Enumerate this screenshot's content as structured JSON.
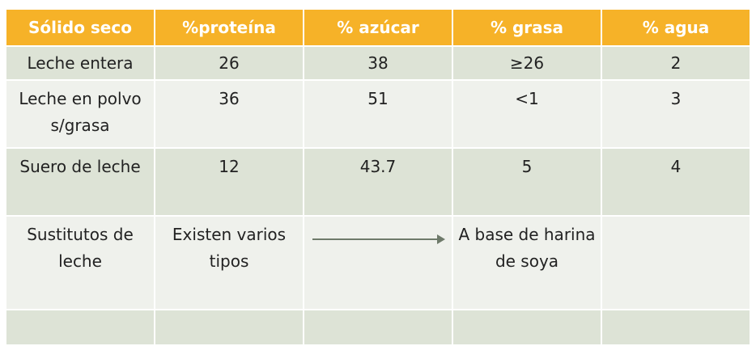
{
  "headers": [
    "Sólido seco",
    "%proteína",
    "% azúcar",
    "% grasa",
    "% agua"
  ],
  "rows": [
    [
      "Leche entera",
      "26",
      "38",
      "≥26",
      "2"
    ],
    [
      "Leche en polvo s/grasa",
      "36",
      "51",
      "<1",
      "3"
    ],
    [
      "Suero de leche",
      "12",
      "43.7",
      "5",
      "4"
    ],
    [
      "Sustitutos de leche",
      "Existen varios tipos",
      "",
      "A base de harina de soya",
      ""
    ],
    [
      "",
      "",
      "",
      "",
      ""
    ]
  ],
  "colors": {
    "header_bg": "#f6b228",
    "row_dark": "#dde3d6",
    "row_light": "#eff1ec",
    "arrow": "#6e7a6a"
  },
  "icons": {
    "row4_col3": "right-arrow-icon"
  }
}
